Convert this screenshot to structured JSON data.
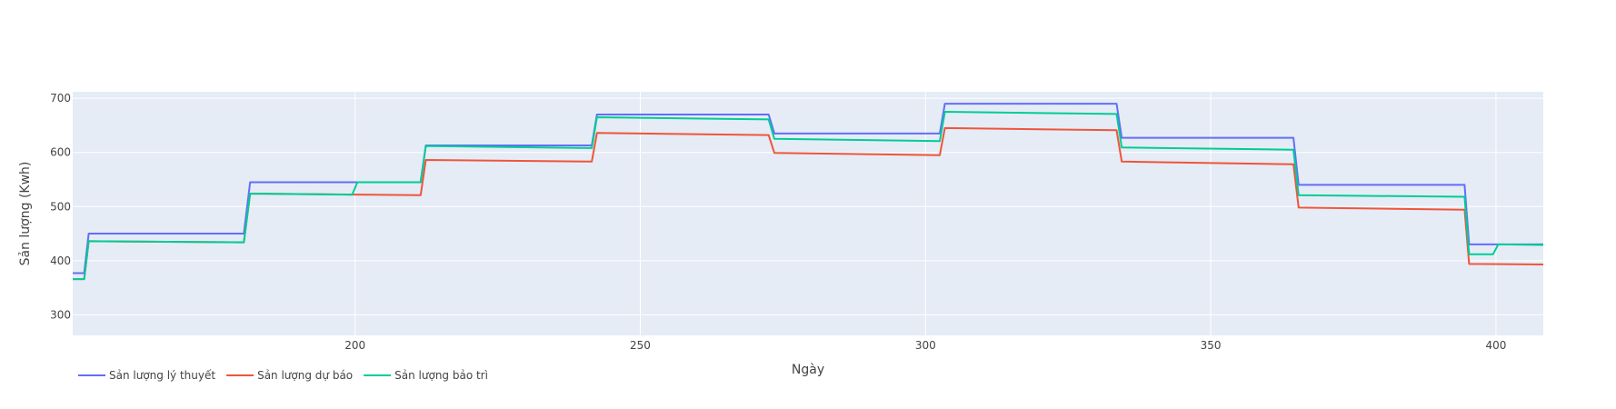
{
  "chart_data": {
    "type": "line",
    "title": "",
    "xlabel": "Ngày",
    "ylabel": "Sản lượng (Kwh)",
    "xlim": [
      150.5,
      408.3
    ],
    "ylim": [
      262,
      712
    ],
    "x_ticks": [
      200,
      250,
      300,
      350,
      400
    ],
    "y_ticks": [
      300,
      400,
      500,
      600,
      700
    ],
    "grid": true,
    "legend_position": "bottom-left",
    "series": [
      {
        "name": "Sản lượng lý thuyết",
        "color": "#636efa",
        "x": [
          150.5,
          152.5,
          153.3,
          180.5,
          181.6,
          211.5,
          212.4,
          241.5,
          242.4,
          272.5,
          273.5,
          302.5,
          303.4,
          333.5,
          334.4,
          364.5,
          365.4,
          394.5,
          395.3,
          408.3
        ],
        "y": [
          377,
          377,
          450,
          450,
          545,
          545,
          613,
          613,
          670,
          670,
          635,
          635,
          690,
          690,
          627,
          627,
          540,
          540,
          430,
          430
        ]
      },
      {
        "name": "Sản lượng dự báo",
        "color": "#ef553b",
        "x": [
          150.5,
          152.5,
          153.3,
          180.5,
          181.6,
          211.5,
          212.4,
          241.5,
          242.4,
          272.5,
          273.5,
          302.5,
          303.4,
          333.5,
          334.4,
          364.5,
          365.4,
          394.5,
          395.3,
          408.3
        ],
        "y": [
          366,
          366,
          436,
          434,
          524,
          521,
          586,
          583,
          636,
          632,
          599,
          595,
          645,
          641,
          583,
          578,
          498,
          494,
          394,
          393
        ]
      },
      {
        "name": "Sản lượng bảo trì",
        "color": "#00cc96",
        "x": [
          150.5,
          152.5,
          153.3,
          180.5,
          181.6,
          199.5,
          200.4,
          211.5,
          212.4,
          241.5,
          242.4,
          272.5,
          273.5,
          302.5,
          303.4,
          333.5,
          334.4,
          364.5,
          365.4,
          394.5,
          395.3,
          399.5,
          400.4,
          408.3
        ],
        "y": [
          366,
          366,
          436,
          434,
          524,
          522,
          545,
          545,
          612,
          608,
          665,
          661,
          625,
          621,
          675,
          671,
          609,
          605,
          521,
          518,
          412,
          412,
          430,
          429
        ]
      }
    ]
  }
}
